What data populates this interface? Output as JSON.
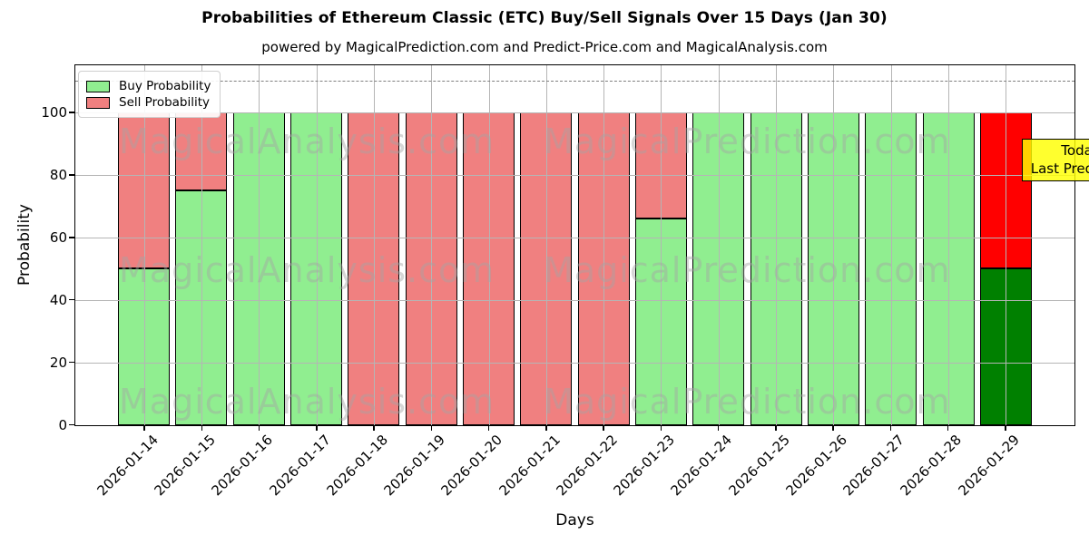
{
  "figure": {
    "title": "Probabilities of Ethereum Classic (ETC) Buy/Sell Signals Over 15 Days (Jan 30)",
    "subtitle": "powered by MagicalPrediction.com and Predict-Price.com and MagicalAnalysis.com"
  },
  "chart_data": {
    "type": "bar",
    "stacked": true,
    "title": "Probabilities of Ethereum Classic (ETC) Buy/Sell Signals Over 15 Days (Jan 30)",
    "subtitle": "powered by MagicalPrediction.com and Predict-Price.com and MagicalAnalysis.com",
    "xlabel": "Days",
    "ylabel": "Probability",
    "ylim": [
      0,
      115
    ],
    "yticks": [
      0,
      20,
      40,
      60,
      80,
      100
    ],
    "grid": true,
    "grid_color": "#b5b5b5",
    "dashed_guide_y": 110,
    "dashed_guide_color": "#7f7f7f",
    "categories": [
      "2026-01-14",
      "2026-01-15",
      "2026-01-16",
      "2026-01-17",
      "2026-01-18",
      "2026-01-19",
      "2026-01-20",
      "2026-01-21",
      "2026-01-22",
      "2026-01-23",
      "2026-01-24",
      "2026-01-25",
      "2026-01-26",
      "2026-01-27",
      "2026-01-28",
      "2026-01-29"
    ],
    "series": [
      {
        "name": "Buy Probability",
        "color": "#90EE90",
        "values": [
          50,
          75,
          100,
          100,
          0,
          0,
          0,
          0,
          0,
          66,
          100,
          100,
          100,
          100,
          100,
          50
        ]
      },
      {
        "name": "Sell Probability",
        "color": "#F08080",
        "values": [
          50,
          25,
          0,
          0,
          100,
          100,
          100,
          100,
          100,
          34,
          0,
          0,
          0,
          0,
          0,
          50
        ]
      }
    ],
    "today_bar": {
      "index": 15,
      "buy_color": "#008000",
      "sell_color": "#FF0000"
    },
    "legend": {
      "position": "upper-left"
    },
    "annotation": {
      "lines": [
        "Today",
        "Last Prediction"
      ],
      "bg_color": "#FFFF00",
      "border_color": "#000000"
    },
    "watermarks": {
      "left": "MagicalAnalysis.com",
      "right": "MagicalPrediction.com"
    }
  }
}
